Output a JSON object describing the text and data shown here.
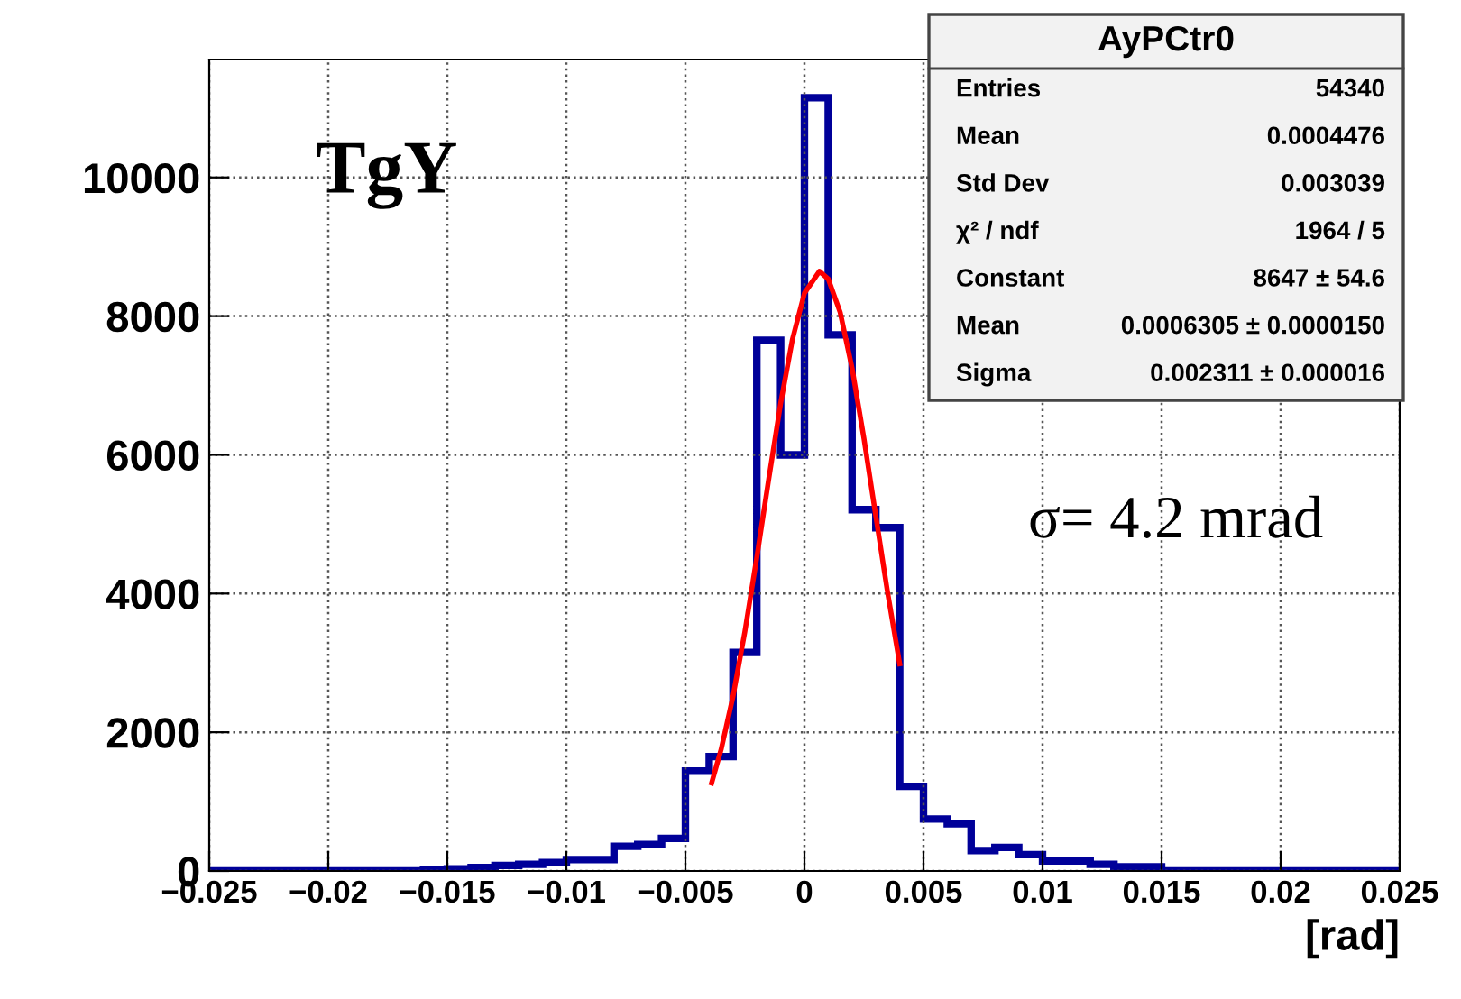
{
  "chart_data": {
    "type": "histogram",
    "xlabel": "[rad]",
    "bins": [
      -0.025,
      -0.024,
      -0.023,
      -0.022,
      -0.021,
      -0.02,
      -0.019,
      -0.018,
      -0.017,
      -0.016,
      -0.015,
      -0.014,
      -0.013,
      -0.012,
      -0.011,
      -0.01,
      -0.009,
      -0.008,
      -0.007,
      -0.006,
      -0.005,
      -0.004,
      -0.003,
      -0.002,
      -0.001,
      0,
      0.001,
      0.002,
      0.003,
      0.004,
      0.005,
      0.006,
      0.007,
      0.008,
      0.009,
      0.01,
      0.011,
      0.012,
      0.013,
      0.014,
      0.015,
      0.016,
      0.017,
      0.018,
      0.019,
      0.02,
      0.021,
      0.022,
      0.023,
      0.024,
      0.025
    ],
    "values": [
      0,
      0,
      0,
      0,
      0,
      0,
      0,
      0,
      0,
      20,
      30,
      50,
      80,
      95,
      120,
      165,
      165,
      355,
      380,
      470,
      1440,
      1650,
      3150,
      7650,
      6000,
      11150,
      7730,
      5210,
      4950,
      1220,
      750,
      680,
      295,
      340,
      235,
      145,
      145,
      95,
      60,
      60,
      0,
      0,
      0,
      0,
      0,
      0,
      0,
      0,
      0,
      0
    ],
    "color": "#000099",
    "series": [
      {
        "type": "line",
        "color": "#ff0000",
        "x": [
          -0.0039,
          -0.0035,
          -0.003,
          -0.0025,
          -0.002,
          -0.0015,
          -0.001,
          -0.0005,
          0,
          0.00063,
          0.001,
          0.0015,
          0.002,
          0.0025,
          0.003,
          0.0035,
          0.004
        ],
        "values": [
          1268,
          1751,
          2516,
          3455,
          4523,
          5652,
          6743,
          7672,
          8331,
          8647,
          8537,
          8055,
          7250,
          6233,
          5110,
          3999,
          2987
        ]
      }
    ],
    "xlim": [
      -0.025,
      0.025
    ],
    "xticks": [
      {
        "value": -0.025,
        "label": "−0.025"
      },
      {
        "value": -0.02,
        "label": "−0.02"
      },
      {
        "value": -0.015,
        "label": "−0.015"
      },
      {
        "value": -0.01,
        "label": "−0.01"
      },
      {
        "value": -0.005,
        "label": "−0.005"
      },
      0,
      0.005,
      0.01,
      0.015,
      0.02,
      0.025
    ],
    "ylim": [
      0,
      11700
    ],
    "yticks": [
      0,
      2000,
      4000,
      6000,
      8000,
      10000
    ],
    "grid": true,
    "legend": false,
    "line_style": "solid",
    "annotations": [
      "TgY",
      "σ= 4.2 mrad",
      "AyPCtr0",
      "Entries",
      "54340",
      "Mean",
      "0.0004476",
      "Std Dev",
      "0.003039",
      "χ² / ndf",
      "1964 / 5",
      "Constant",
      "8647 ± 54.6",
      "Mean",
      "0.0006305 ± 0.0000150",
      "Sigma",
      "0.002311 ± 0.000016"
    ]
  }
}
